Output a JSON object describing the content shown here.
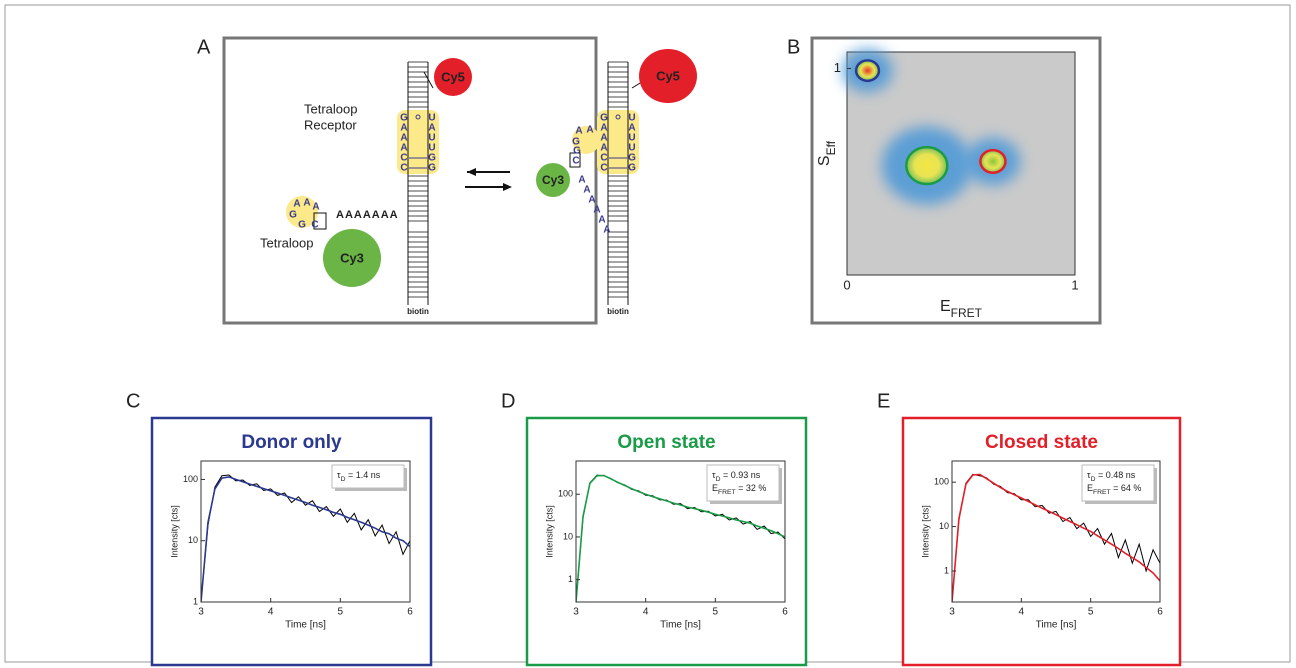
{
  "diagram": {
    "panel": "A",
    "left": {
      "cy5": "Cy5",
      "cy3": "Cy3",
      "receptor_label": [
        "Tetraloop",
        "Receptor"
      ],
      "loop_label": "Tetraloop",
      "biotin": "biotin",
      "receptor": [
        [
          "G",
          "U"
        ],
        [
          "A",
          "A"
        ],
        [
          "A",
          "U"
        ],
        [
          "A",
          "U"
        ],
        [
          "C",
          "G"
        ],
        [
          "C",
          "G"
        ]
      ],
      "loop": [
        "A",
        "A",
        "G",
        "A",
        "G",
        "C"
      ],
      "linker": "AAAAAAA"
    },
    "right": {
      "cy5": "Cy5",
      "cy3": "Cy3",
      "biotin": "biotin",
      "receptor": [
        [
          "G",
          "U"
        ],
        [
          "A",
          "A"
        ],
        [
          "A",
          "U"
        ],
        [
          "A",
          "U"
        ],
        [
          "C",
          "G"
        ],
        [
          "C",
          "G"
        ]
      ],
      "loop": [
        "A",
        "A",
        "G",
        "G",
        "C"
      ],
      "linker": [
        "A",
        "A",
        "A",
        "A",
        "A",
        "A"
      ]
    }
  },
  "chart_data": [
    {
      "type": "density",
      "panel": "B",
      "xlabel": "E",
      "xlabel_sub": "FRET",
      "ylabel": "S",
      "ylabel_sub": "Eff",
      "xlim": [
        0,
        1
      ],
      "ylim": [
        0,
        1.08
      ],
      "xticks": [
        0,
        1
      ],
      "yticks": [
        1
      ],
      "populations": [
        {
          "x": 0.09,
          "y": 0.99,
          "r": 0.05,
          "color": "#2b3990",
          "fill": "#e8372b"
        },
        {
          "x": 0.35,
          "y": 0.53,
          "r": 0.09,
          "color": "#1a9b48",
          "fill": "#f2e643"
        },
        {
          "x": 0.64,
          "y": 0.55,
          "r": 0.055,
          "color": "#e3202a",
          "fill": "#8dc63f"
        }
      ]
    },
    {
      "type": "decay",
      "panel": "C",
      "title": "Donor only",
      "color": "#2b3990",
      "xlabel": "Time [ns]",
      "ylabel": "Intensity [cts]",
      "log_y": true,
      "xlim": [
        3,
        6
      ],
      "ylim": [
        1,
        200
      ],
      "xticks": [
        3,
        4,
        5,
        6
      ],
      "yticks": [
        1,
        10,
        100
      ],
      "annotation": [
        [
          {
            "t": "τ"
          },
          {
            "sub": "D"
          },
          {
            "t": " = 1.4 ns"
          }
        ]
      ],
      "x": [
        3.0,
        3.1,
        3.2,
        3.3,
        3.4,
        3.5,
        3.6,
        3.7,
        3.8,
        3.9,
        4.0,
        4.1,
        4.2,
        4.3,
        4.4,
        4.5,
        4.6,
        4.7,
        4.8,
        4.9,
        5.0,
        5.1,
        5.2,
        5.3,
        5.4,
        5.5,
        5.6,
        5.7,
        5.8,
        5.9,
        6.0
      ],
      "series": [
        {
          "color": "#000000",
          "values": [
            1,
            18,
            75,
            115,
            118,
            95,
            98,
            80,
            85,
            66,
            70,
            55,
            60,
            42,
            52,
            38,
            45,
            30,
            36,
            25,
            33,
            20,
            28,
            15,
            22,
            12,
            18,
            9,
            14,
            6,
            10
          ]
        },
        {
          "color": "#2b3990",
          "values": [
            1,
            20,
            70,
            105,
            110,
            100,
            92,
            84,
            77,
            71,
            65,
            60,
            55,
            50,
            46,
            42,
            38,
            35,
            32,
            29,
            27,
            24,
            22,
            20,
            18,
            16,
            14,
            13,
            11,
            10,
            8
          ]
        }
      ]
    },
    {
      "type": "decay",
      "panel": "D",
      "title": "Open state",
      "color": "#1a9b48",
      "xlabel": "Time [ns]",
      "ylabel": "Intensity [cts]",
      "log_y": true,
      "xlim": [
        3,
        6
      ],
      "ylim": [
        0.3,
        600
      ],
      "xticks": [
        3,
        4,
        5,
        6
      ],
      "yticks": [
        1,
        10,
        100
      ],
      "annotation": [
        [
          {
            "t": "τ"
          },
          {
            "sub": "D"
          },
          {
            "t": " = 0.93 ns"
          }
        ],
        [
          {
            "t": "E"
          },
          {
            "sub": "FRET"
          },
          {
            "t": " = 32 %"
          }
        ]
      ],
      "x": [
        3.0,
        3.1,
        3.2,
        3.3,
        3.4,
        3.5,
        3.6,
        3.7,
        3.8,
        3.9,
        4.0,
        4.1,
        4.2,
        4.3,
        4.4,
        4.5,
        4.6,
        4.7,
        4.8,
        4.9,
        5.0,
        5.1,
        5.2,
        5.3,
        5.4,
        5.5,
        5.6,
        5.7,
        5.8,
        5.9,
        6.0
      ],
      "series": [
        {
          "color": "#000000",
          "values": [
            0.3,
            28,
            185,
            280,
            270,
            235,
            185,
            165,
            130,
            120,
            95,
            92,
            74,
            73,
            58,
            60,
            46,
            49,
            39,
            40,
            31,
            34,
            25,
            28,
            20,
            23,
            15,
            18,
            12,
            13,
            9
          ]
        },
        {
          "color": "#1a9b48",
          "values": [
            0.3,
            30,
            180,
            270,
            275,
            230,
            190,
            160,
            135,
            115,
            100,
            88,
            78,
            70,
            62,
            56,
            50,
            46,
            42,
            38,
            34,
            31,
            28,
            25,
            23,
            21,
            18,
            16,
            14,
            12,
            10
          ]
        }
      ]
    },
    {
      "type": "decay",
      "panel": "E",
      "title": "Closed state",
      "color": "#e3202a",
      "xlabel": "Time [ns]",
      "ylabel": "Intensity [cts]",
      "log_y": true,
      "xlim": [
        3,
        6
      ],
      "ylim": [
        0.2,
        300
      ],
      "xticks": [
        3,
        4,
        5,
        6
      ],
      "yticks": [
        1,
        10,
        100
      ],
      "annotation": [
        [
          {
            "t": "τ"
          },
          {
            "sub": "D"
          },
          {
            "t": " = 0.48 ns"
          }
        ],
        [
          {
            "t": "E"
          },
          {
            "sub": "FRET"
          },
          {
            "t": " = 64 %"
          }
        ]
      ],
      "x": [
        3.0,
        3.1,
        3.2,
        3.3,
        3.4,
        3.5,
        3.6,
        3.7,
        3.8,
        3.9,
        4.0,
        4.1,
        4.2,
        4.3,
        4.4,
        4.5,
        4.6,
        4.7,
        4.8,
        4.9,
        5.0,
        5.1,
        5.2,
        5.3,
        5.4,
        5.5,
        5.6,
        5.7,
        5.8,
        5.9,
        6.0
      ],
      "series": [
        {
          "color": "#000000",
          "values": [
            0.2,
            14,
            95,
            150,
            140,
            125,
            90,
            80,
            58,
            55,
            40,
            40,
            28,
            30,
            20,
            22,
            13,
            16,
            9,
            12,
            6,
            9,
            4,
            7,
            2,
            5,
            1.5,
            4,
            1,
            3,
            1.5
          ]
        },
        {
          "color": "#e3202a",
          "values": [
            0.2,
            15,
            90,
            145,
            150,
            120,
            95,
            76,
            62,
            52,
            44,
            37,
            31,
            26,
            22,
            18.5,
            15.5,
            13,
            11,
            9.2,
            7.8,
            6.2,
            5.0,
            4.0,
            3.2,
            2.5,
            2.0,
            1.6,
            1.2,
            0.9,
            0.6
          ]
        }
      ]
    }
  ]
}
